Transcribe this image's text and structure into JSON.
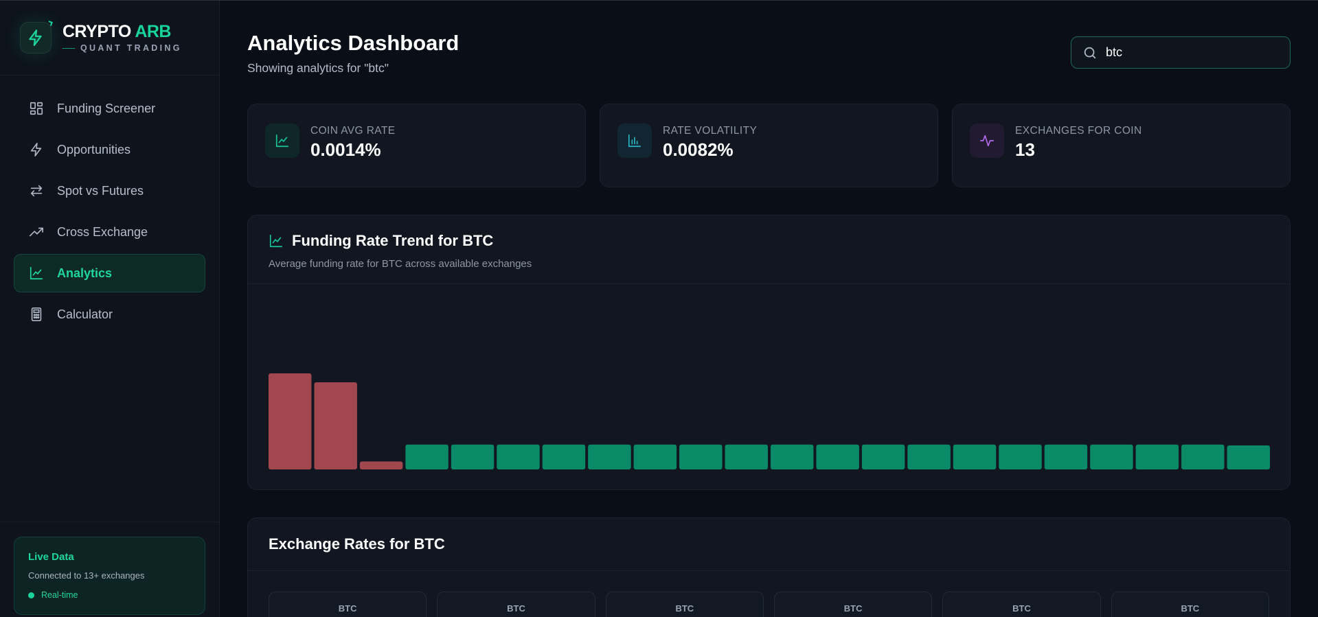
{
  "brand": {
    "title_part1": "CRYPTO",
    "title_part2": " ARB",
    "subtitle": "QUANT TRADING"
  },
  "nav": {
    "items": [
      {
        "label": "Funding Screener",
        "icon": "grid-icon",
        "active": false
      },
      {
        "label": "Opportunities",
        "icon": "lightning-icon",
        "active": false
      },
      {
        "label": "Spot vs Futures",
        "icon": "swap-arrows-icon",
        "active": false
      },
      {
        "label": "Cross Exchange",
        "icon": "trending-up-icon",
        "active": false
      },
      {
        "label": "Analytics",
        "icon": "line-chart-icon",
        "active": true
      },
      {
        "label": "Calculator",
        "icon": "calculator-icon",
        "active": false
      }
    ]
  },
  "live": {
    "title": "Live Data",
    "description": "Connected to 13+ exchanges",
    "status": "Real-time"
  },
  "header": {
    "title": "Analytics Dashboard",
    "subtitle": "Showing analytics for \"btc\""
  },
  "search": {
    "value": "btc",
    "placeholder": ""
  },
  "stats": [
    {
      "label": "COIN AVG RATE",
      "value": "0.0014%",
      "icon": "line-chart-icon",
      "accent": "#18c79a",
      "bg": "#10272a"
    },
    {
      "label": "RATE VOLATILITY",
      "value": "0.0082%",
      "icon": "bar-chart-icon",
      "accent": "#2bb7c9",
      "bg": "#112630"
    },
    {
      "label": "EXCHANGES FOR COIN",
      "value": "13",
      "icon": "activity-pulse-icon",
      "accent": "#b26bf0",
      "bg": "#211a31"
    }
  ],
  "trend_card": {
    "title": "Funding Rate Trend for BTC",
    "description": "Average funding rate for BTC across available exchanges"
  },
  "chart_data": {
    "type": "bar",
    "values": [
      -0.0108,
      -0.0098,
      -0.0009,
      0.0028,
      0.0028,
      0.0028,
      0.0028,
      0.0028,
      0.0028,
      0.0028,
      0.0028,
      0.0028,
      0.0028,
      0.0028,
      0.0028,
      0.0028,
      0.0028,
      0.0028,
      0.0028,
      0.0028,
      0.0028,
      0.0027
    ],
    "colors": {
      "negative": "#a2474e",
      "positive": "#0b8a68"
    }
  },
  "rates_card": {
    "title": "Exchange Rates for BTC",
    "tiles": [
      "BTC",
      "BTC",
      "BTC",
      "BTC",
      "BTC",
      "BTC"
    ]
  }
}
